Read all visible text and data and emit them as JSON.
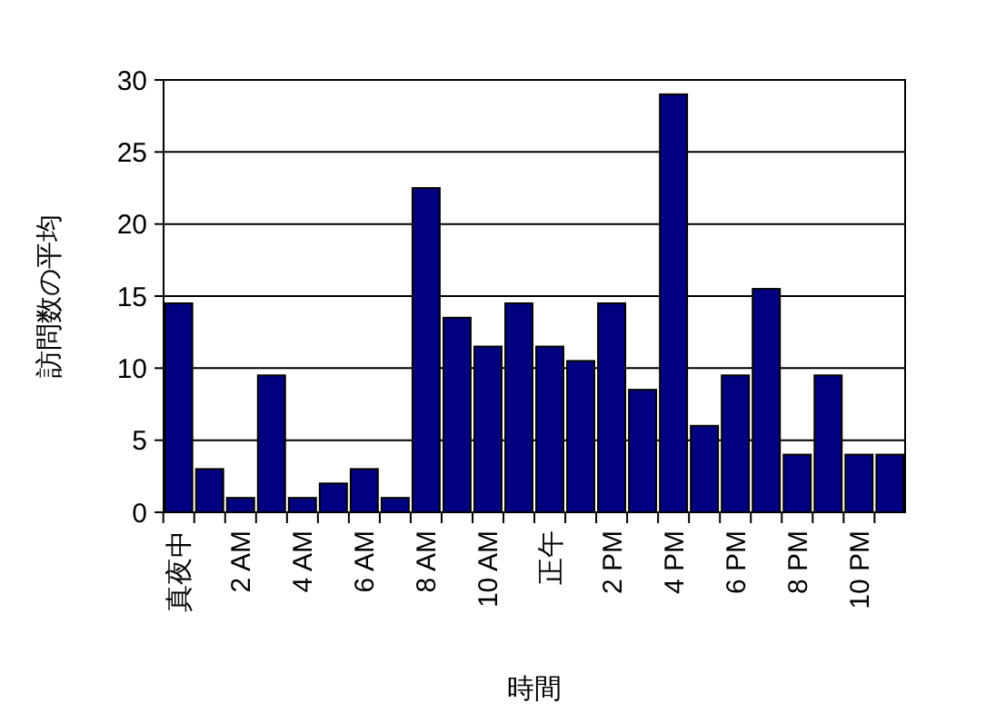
{
  "chart_data": {
    "type": "bar",
    "xlabel": "時間",
    "ylabel": "訪問数の平均",
    "categories": [
      "真夜中",
      null,
      "2 AM",
      null,
      "4 AM",
      null,
      "6 AM",
      null,
      "8 AM",
      null,
      "10 AM",
      null,
      "正午",
      null,
      "2 PM",
      null,
      "4 PM",
      null,
      "6 PM",
      null,
      "8 PM",
      null,
      "10 PM",
      null
    ],
    "values": [
      14.5,
      3,
      1,
      9.5,
      1,
      2,
      3,
      1,
      22.5,
      13.5,
      11.5,
      14.5,
      11.5,
      10.5,
      14.5,
      8.5,
      29,
      6,
      9.5,
      15.5,
      4,
      9.5,
      4,
      4
    ],
    "color": "#000080",
    "ylim": [
      0,
      30
    ],
    "yticks": [
      0,
      5,
      10,
      15,
      20,
      25,
      30
    ],
    "grid": "y"
  }
}
